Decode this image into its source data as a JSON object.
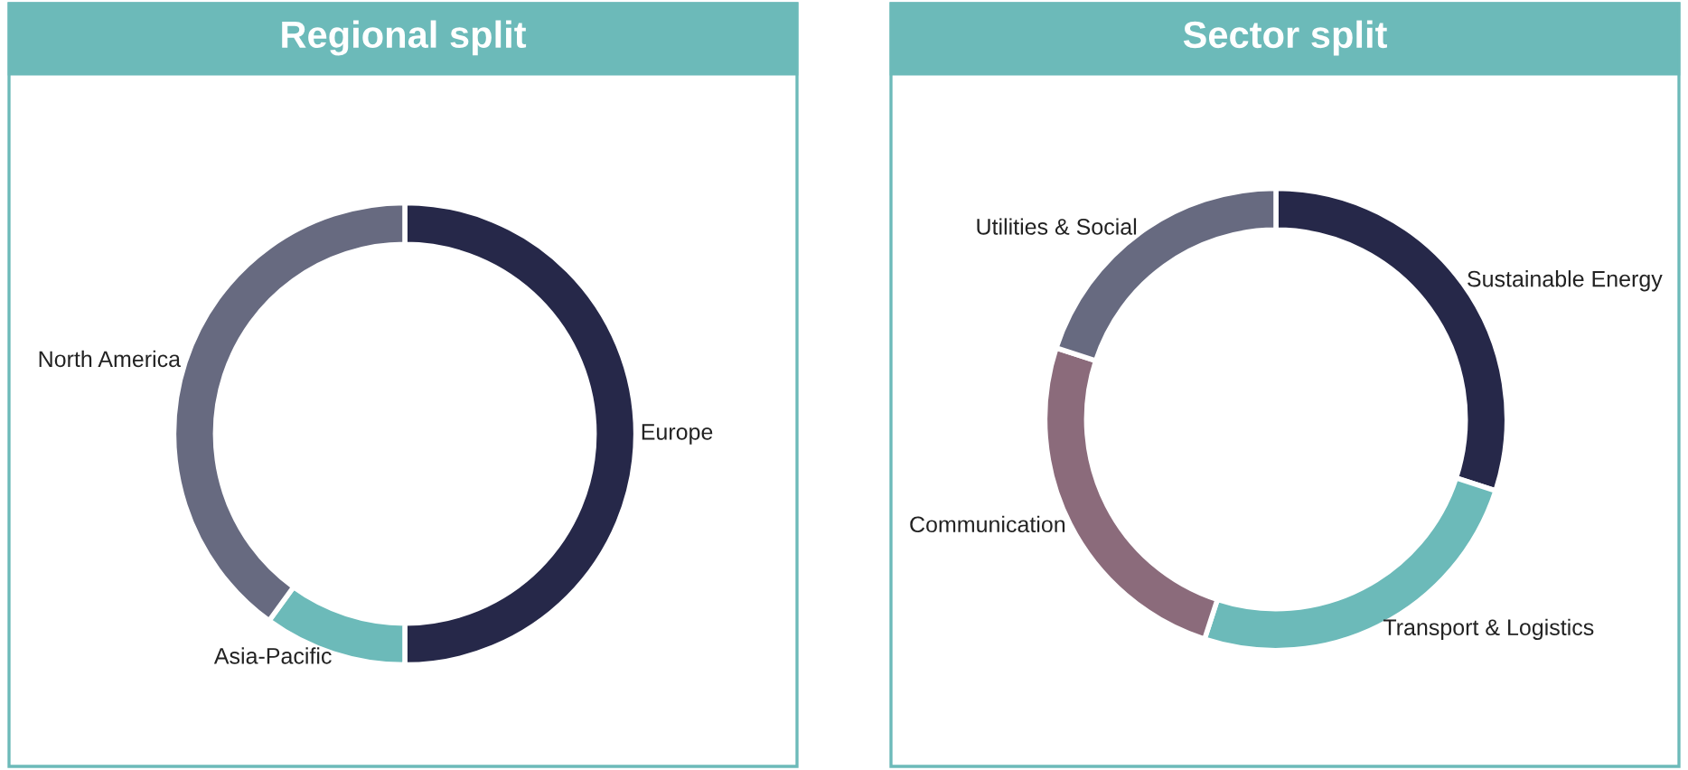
{
  "chart_data": [
    {
      "type": "donut",
      "title": "Regional split",
      "categories": [
        "Europe",
        "Asia-Pacific",
        "North America"
      ],
      "values": [
        50,
        10,
        40
      ],
      "colors": [
        "#262849",
        "#6cbab9",
        "#676a80"
      ],
      "legend": false
    },
    {
      "type": "donut",
      "title": "Sector split",
      "categories": [
        "Sustainable Energy",
        "Transport & Logistics",
        "Communication",
        "Utilities & Social"
      ],
      "values": [
        30,
        25,
        25,
        20
      ],
      "colors": [
        "#262849",
        "#6cbab9",
        "#8b6b7b",
        "#676a80"
      ],
      "legend": false
    }
  ]
}
